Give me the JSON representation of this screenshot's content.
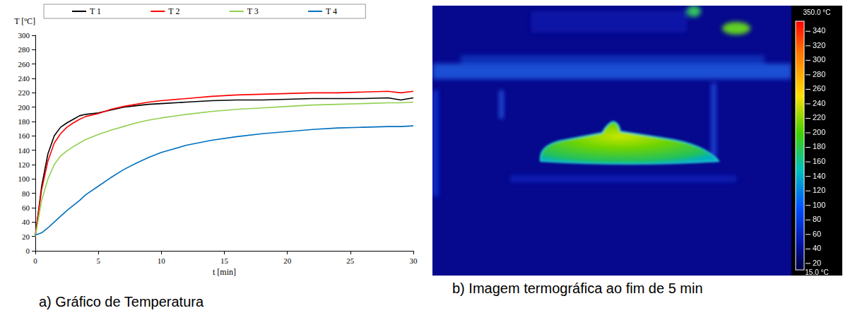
{
  "chart_data": {
    "type": "line",
    "caption": "a) Gráfico de Temperatura",
    "x_label": "t [min]",
    "y_label": "T [ºC]",
    "x": [
      0,
      0.5,
      1,
      1.5,
      2,
      2.5,
      3,
      3.5,
      4,
      5,
      6,
      7,
      8,
      9,
      10,
      12,
      14,
      16,
      18,
      20,
      22,
      24,
      26,
      28,
      29,
      30
    ],
    "series": [
      {
        "name": "T 1",
        "color": "#000000",
        "values": [
          20,
          90,
          135,
          160,
          172,
          178,
          183,
          188,
          190,
          192,
          196,
          200,
          202,
          204,
          205,
          207,
          209,
          210,
          210,
          211,
          212,
          212,
          212,
          213,
          210,
          213
        ]
      },
      {
        "name": "T 2",
        "color": "#ff0000",
        "values": [
          22,
          85,
          125,
          150,
          163,
          172,
          178,
          183,
          187,
          191,
          197,
          201,
          204,
          207,
          209,
          212,
          215,
          217,
          218,
          219,
          220,
          220,
          221,
          222,
          220,
          222
        ]
      },
      {
        "name": "T 3",
        "color": "#92d050",
        "values": [
          20,
          70,
          100,
          120,
          132,
          139,
          145,
          150,
          155,
          162,
          168,
          173,
          178,
          182,
          185,
          190,
          194,
          197,
          199,
          201,
          203,
          204,
          205,
          206,
          206,
          207
        ]
      },
      {
        "name": "T 4",
        "color": "#0070c0",
        "values": [
          22,
          25,
          32,
          40,
          48,
          56,
          63,
          70,
          78,
          90,
          102,
          113,
          122,
          130,
          137,
          147,
          154,
          159,
          163,
          166,
          169,
          171,
          172,
          173,
          173,
          174
        ]
      }
    ],
    "xlim": [
      0,
      30
    ],
    "xticks": [
      0,
      5,
      10,
      15,
      20,
      25,
      30
    ],
    "ylim": [
      0,
      300
    ],
    "yticks": [
      0,
      20,
      40,
      60,
      80,
      100,
      120,
      140,
      160,
      180,
      200,
      220,
      240,
      260,
      280,
      300
    ],
    "grid": false,
    "legend": "top"
  },
  "thermogram": {
    "caption": "b) Imagem termográfica ao fim de 5 min",
    "colorbar": {
      "range": [
        15,
        350
      ],
      "ticks": [
        20,
        40,
        60,
        80,
        100,
        120,
        140,
        160,
        180,
        200,
        220,
        240,
        260,
        280,
        300,
        320,
        340
      ],
      "max_label": "350.0 °C",
      "min_label": "15.0 °C"
    }
  }
}
